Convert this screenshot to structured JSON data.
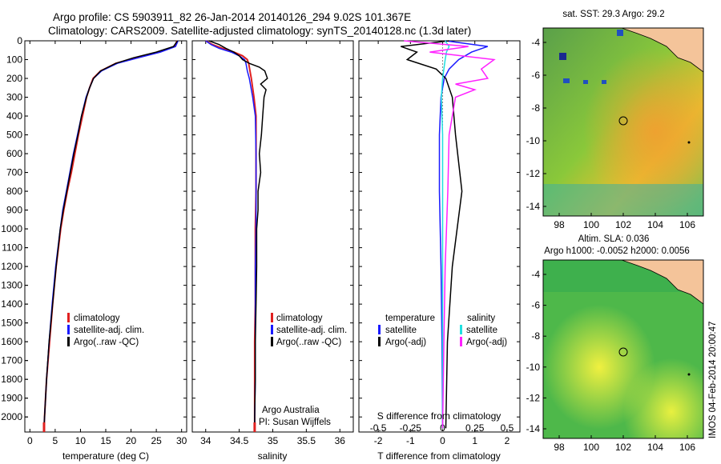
{
  "header": {
    "line1": "Argo profile: CS 5903911_82 26-Jan-2014 20140126_294 9.02S 101.367E",
    "line2": "Climatology: CARS2009. Satellite-adjusted climatology: synTS_20140128.nc (1.3d later)"
  },
  "colors": {
    "climatology": "#e02020",
    "satellite": "#1a1aff",
    "argo": "#000000",
    "sat_sal": "#20e0e0",
    "argo_adj": "#ff20ff",
    "land": "#f4c49a"
  },
  "chart_data": [
    {
      "id": "temperature",
      "type": "line",
      "xlabel": "temperature (deg C)",
      "xlim": [
        -1,
        31
      ],
      "xticks": [
        0,
        5,
        10,
        15,
        20,
        25,
        30
      ],
      "ylim": [
        2080,
        0
      ],
      "yticks": [
        0,
        100,
        200,
        300,
        400,
        500,
        600,
        700,
        800,
        900,
        1000,
        1100,
        1200,
        1300,
        1400,
        1500,
        1600,
        1700,
        1800,
        1900,
        2000
      ],
      "legend": [
        "climatology",
        "satellite-adj. clim.",
        "Argo(..raw -QC)"
      ],
      "series": [
        {
          "name": "climatology",
          "depth": [
            0,
            30,
            60,
            90,
            120,
            160,
            200,
            250,
            300,
            400,
            500,
            600,
            700,
            800,
            900,
            1000,
            1200,
            1400,
            1600,
            1800,
            2000,
            2060
          ],
          "values": [
            29.1,
            28.6,
            25.5,
            21,
            17,
            14,
            12.5,
            11.8,
            11.2,
            10.4,
            9.6,
            8.9,
            8.2,
            7.4,
            6.7,
            6.1,
            5.2,
            4.5,
            3.9,
            3.3,
            2.9,
            2.8
          ]
        },
        {
          "name": "satellite-adj. clim.",
          "depth": [
            0,
            30,
            60,
            90,
            120,
            160,
            200,
            250,
            300,
            400,
            500,
            600,
            700,
            800,
            900,
            1000,
            1200,
            1400,
            1600,
            1800,
            2000,
            2060
          ],
          "values": [
            29.3,
            28.8,
            25.8,
            21.5,
            17.3,
            14.2,
            12.6,
            11.8,
            11.1,
            10.2,
            9.4,
            8.6,
            7.9,
            7.2,
            6.5,
            6.0,
            5.1,
            4.4,
            3.8,
            3.3,
            2.9,
            2.8
          ]
        },
        {
          "name": "Argo(..raw -QC)",
          "depth": [
            0,
            30,
            60,
            90,
            120,
            160,
            200,
            250,
            300,
            400,
            500,
            600,
            700,
            800,
            900,
            1000,
            1200,
            1400,
            1600,
            1800,
            2000,
            2060
          ],
          "values": [
            29.2,
            28.4,
            25,
            20.5,
            17,
            14,
            12.6,
            11.8,
            11.2,
            10.2,
            9.5,
            8.7,
            8.0,
            7.3,
            6.6,
            6.0,
            5.2,
            4.5,
            3.8,
            3.3,
            2.9,
            2.8
          ]
        }
      ]
    },
    {
      "id": "salinity",
      "type": "line",
      "xlabel": "salinity",
      "xlim": [
        33.8,
        36.2
      ],
      "xticks": [
        34,
        34.5,
        35,
        35.5,
        36
      ],
      "ylim": [
        2080,
        0
      ],
      "legend": [
        "climatology",
        "satellite-adj. clim.",
        "Argo(..raw -QC)"
      ],
      "annotation": [
        "Argo Australia",
        "PI: Susan Wijffels"
      ],
      "series": [
        {
          "name": "climatology",
          "depth": [
            0,
            20,
            40,
            60,
            80,
            100,
            120,
            160,
            200,
            300,
            400,
            600,
            800,
            1000,
            1200,
            1400,
            1600,
            1800,
            2000,
            2060
          ],
          "values": [
            34.0,
            34.1,
            34.25,
            34.42,
            34.55,
            34.62,
            34.64,
            34.66,
            34.68,
            34.72,
            34.75,
            34.75,
            34.75,
            34.74,
            34.74,
            34.74,
            34.73,
            34.73,
            34.73,
            34.73
          ]
        },
        {
          "name": "satellite-adj. clim.",
          "depth": [
            0,
            20,
            40,
            60,
            80,
            100,
            120,
            160,
            200,
            300,
            400,
            600,
            800,
            1000,
            1200,
            1400,
            1600,
            1800,
            2000,
            2060
          ],
          "values": [
            34.0,
            34.08,
            34.2,
            34.38,
            34.5,
            34.58,
            34.6,
            34.62,
            34.65,
            34.7,
            34.74,
            34.75,
            34.75,
            34.75,
            34.74,
            34.74,
            34.74,
            34.74,
            34.73,
            34.73
          ]
        },
        {
          "name": "Argo(..raw -QC)",
          "depth": [
            0,
            20,
            40,
            60,
            80,
            100,
            120,
            140,
            160,
            200,
            230,
            260,
            300,
            400,
            500,
            600,
            700,
            800,
            900,
            1000,
            1200,
            1400,
            1600,
            1800,
            2000,
            2060
          ],
          "values": [
            34.05,
            34.2,
            34.3,
            34.42,
            34.5,
            34.55,
            34.65,
            34.8,
            34.88,
            34.92,
            34.82,
            34.9,
            34.87,
            34.85,
            34.83,
            34.8,
            34.82,
            34.78,
            34.78,
            34.76,
            34.76,
            34.75,
            34.74,
            34.74,
            34.73,
            34.73
          ]
        }
      ]
    },
    {
      "id": "difference",
      "type": "line",
      "xlabel": "T difference from climatology",
      "xlabel2": "S difference from climatology",
      "xlim": [
        -2.6,
        2.4
      ],
      "xticks": [
        -2,
        -1,
        0,
        1,
        2
      ],
      "xticks_s": [
        -0.5,
        -0.25,
        0,
        0.25,
        0.5
      ],
      "ylim": [
        2080,
        0
      ],
      "legend": {
        "temperature": "temperature",
        "salinity": "salinity",
        "t_sat": "satellite",
        "t_argo": "Argo(-adj)",
        "s_sat": "satellite",
        "s_argo": "Argo(-adj)"
      },
      "series": [
        {
          "name": "T satellite",
          "depth": [
            0,
            30,
            60,
            100,
            150,
            200,
            300,
            500,
            800,
            1200,
            1600,
            2060
          ],
          "values": [
            0.1,
            1.4,
            0.9,
            0.5,
            0.2,
            0.05,
            -0.05,
            -0.1,
            -0.1,
            -0.05,
            -0.02,
            0
          ]
        },
        {
          "name": "T Argo(-adj)",
          "depth": [
            0,
            30,
            60,
            100,
            150,
            200,
            300,
            500,
            800,
            1200,
            1600,
            2060
          ],
          "values": [
            0.2,
            -1.3,
            -0.8,
            -1.1,
            -0.2,
            0.1,
            0.3,
            0.4,
            0.6,
            0.3,
            0.15,
            0.1
          ]
        },
        {
          "name": "S satellite",
          "depth": [
            0,
            30,
            60,
            100,
            150,
            200,
            300,
            500,
            800,
            1200,
            1600,
            2060
          ],
          "values": [
            0.02,
            0.05,
            0.03,
            0.02,
            0.01,
            0.0,
            -0.01,
            0.0,
            0.0,
            0.0,
            0.0,
            0.0
          ]
        },
        {
          "name": "S Argo(-adj)",
          "depth": [
            0,
            30,
            60,
            100,
            150,
            200,
            230,
            260,
            300,
            500,
            800,
            1200,
            1600,
            2060
          ],
          "values": [
            -0.3,
            0.2,
            -0.1,
            0.4,
            0.3,
            0.35,
            0.1,
            0.25,
            0.1,
            0.05,
            0.04,
            0.02,
            0.01,
            0.0
          ]
        }
      ]
    }
  ],
  "map1": {
    "title": "sat. SST: 29.3  Argo: 29.2",
    "xticks": [
      "98",
      "100",
      "102",
      "104",
      "106"
    ],
    "yticks": [
      "-4",
      "-6",
      "-8",
      "-10",
      "-12",
      "-14"
    ]
  },
  "map2": {
    "title1": "Altim. SLA: 0.036",
    "title2": "Argo h1000: -0.0052  h2000: 0.0056",
    "xticks": [
      "98",
      "100",
      "102",
      "104",
      "106"
    ],
    "yticks": [
      "-4",
      "-6",
      "-8",
      "-10",
      "-12",
      "-14"
    ]
  },
  "footer": "IMOS 04-Feb-2014 20:00:47"
}
